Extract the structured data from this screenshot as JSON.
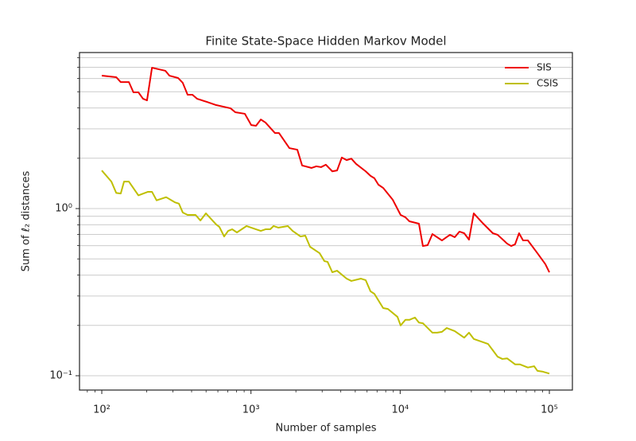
{
  "chart_data": {
    "type": "line",
    "title": "Finite State-Space Hidden Markov Model",
    "x_label": "Number of samples",
    "y_label": "Sum of ℓ₂ distances",
    "xscale": "log",
    "yscale": "log",
    "xlim": [
      70.9,
      142700
    ],
    "ylim": [
      0.0821,
      8.58
    ],
    "xticks": [
      {
        "value": 100,
        "label": "10²"
      },
      {
        "value": 1000,
        "label": "10³"
      },
      {
        "value": 10000,
        "label": "10⁴"
      },
      {
        "value": 100000,
        "label": "10⁵"
      }
    ],
    "yticks": [
      {
        "value": 0.1,
        "label": "10⁻¹"
      },
      {
        "value": 1,
        "label": "10⁰"
      }
    ],
    "x_minor_ticks": [
      80,
      90,
      200,
      300,
      400,
      500,
      600,
      700,
      800,
      900,
      2000,
      3000,
      4000,
      5000,
      6000,
      7000,
      8000,
      9000,
      20000,
      30000,
      40000,
      50000,
      60000,
      70000,
      80000,
      90000
    ],
    "y_minor_ticks": [
      0.2,
      0.3,
      0.4,
      0.5,
      0.6,
      0.7,
      0.8,
      0.9,
      2,
      3,
      4,
      5,
      6,
      7,
      8
    ],
    "grid": "y",
    "legend": "upper right",
    "series": [
      {
        "name": "SIS",
        "color": "#ee0000",
        "x": [
          100,
          125,
          134,
          152,
          163,
          176,
          189,
          201,
          217,
          267,
          284,
          325,
          349,
          376,
          405,
          435,
          505,
          585,
          730,
          785,
          910,
          1004,
          1081,
          1164,
          1251,
          1449,
          1542,
          1809,
          2045,
          2203,
          2548,
          2742,
          2951,
          3177,
          3508,
          3776,
          4064,
          4375,
          4708,
          5069,
          5875,
          6324,
          6717,
          7145,
          7689,
          8913,
          10069,
          10840,
          11530,
          13360,
          14200,
          15280,
          16450,
          19050,
          21560,
          23210,
          24960,
          26870,
          28920,
          31130,
          36060,
          41780,
          44970,
          52120,
          55460,
          58900,
          62650,
          66630,
          71760,
          83170,
          93990,
          100000
        ],
        "values": [
          6.24,
          6.11,
          5.71,
          5.71,
          4.96,
          4.96,
          4.54,
          4.44,
          6.96,
          6.67,
          6.24,
          6.04,
          5.65,
          4.8,
          4.8,
          4.54,
          4.35,
          4.16,
          3.98,
          3.77,
          3.69,
          3.16,
          3.13,
          3.41,
          3.27,
          2.83,
          2.83,
          2.3,
          2.25,
          1.81,
          1.75,
          1.79,
          1.77,
          1.83,
          1.67,
          1.69,
          2.02,
          1.95,
          1.99,
          1.85,
          1.67,
          1.57,
          1.52,
          1.39,
          1.33,
          1.13,
          0.916,
          0.887,
          0.839,
          0.812,
          0.597,
          0.604,
          0.704,
          0.645,
          0.697,
          0.674,
          0.728,
          0.712,
          0.652,
          0.936,
          0.812,
          0.712,
          0.697,
          0.617,
          0.597,
          0.611,
          0.712,
          0.645,
          0.645,
          0.541,
          0.465,
          0.416
        ]
      },
      {
        "name": "CSIS",
        "color": "#bfbf00",
        "x": [
          100,
          116,
          125,
          134,
          141,
          152,
          176,
          204,
          217,
          233,
          270,
          309,
          329,
          349,
          376,
          425,
          458,
          499,
          585,
          614,
          661,
          703,
          748,
          805,
          933,
          1081,
          1164,
          1251,
          1346,
          1416,
          1524,
          1766,
          1901,
          2149,
          2312,
          2488,
          2884,
          3104,
          3261,
          3508,
          3776,
          4375,
          4708,
          5458,
          5875,
          6324,
          6717,
          7689,
          8276,
          9594,
          10069,
          10840,
          11530,
          12560,
          13360,
          14200,
          16450,
          17710,
          19050,
          20510,
          23210,
          26870,
          28920,
          31130,
          38820,
          41780,
          44970,
          48420,
          52120,
          58900,
          63390,
          71760,
          79070,
          83170,
          89530,
          100000
        ],
        "values": [
          1.69,
          1.45,
          1.24,
          1.23,
          1.45,
          1.45,
          1.2,
          1.26,
          1.26,
          1.12,
          1.17,
          1.09,
          1.07,
          0.947,
          0.916,
          0.916,
          0.849,
          0.936,
          0.803,
          0.777,
          0.681,
          0.735,
          0.752,
          0.72,
          0.786,
          0.752,
          0.735,
          0.752,
          0.752,
          0.786,
          0.769,
          0.786,
          0.735,
          0.681,
          0.689,
          0.591,
          0.541,
          0.485,
          0.48,
          0.416,
          0.425,
          0.381,
          0.369,
          0.381,
          0.373,
          0.32,
          0.309,
          0.254,
          0.251,
          0.225,
          0.2,
          0.216,
          0.216,
          0.223,
          0.208,
          0.206,
          0.181,
          0.181,
          0.183,
          0.193,
          0.185,
          0.169,
          0.181,
          0.166,
          0.155,
          0.142,
          0.13,
          0.126,
          0.127,
          0.117,
          0.117,
          0.112,
          0.114,
          0.107,
          0.106,
          0.103
        ]
      }
    ]
  }
}
